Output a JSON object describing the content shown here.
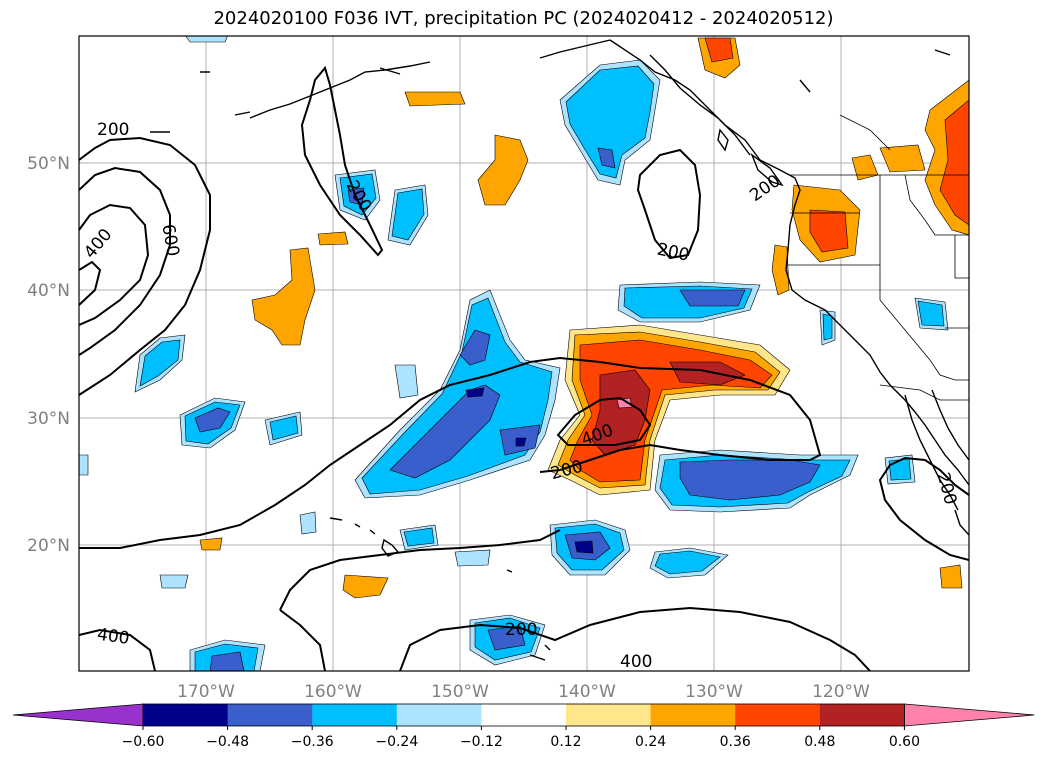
{
  "title": "2024020100 F036 IVT, precipitation PC (2024020412 - 2024020512)",
  "lat_ticks": [
    "50°N",
    "40°N",
    "30°N",
    "20°N"
  ],
  "lon_ticks": [
    "170°W",
    "160°W",
    "150°W",
    "140°W",
    "130°W",
    "120°W"
  ],
  "contour_labels": [
    "200",
    "400",
    "600",
    "200",
    "200",
    "200",
    "400",
    "200",
    "200",
    "400",
    "200",
    "400"
  ],
  "colorbar": {
    "labels": [
      "−0.60",
      "−0.48",
      "−0.36",
      "−0.24",
      "−0.12",
      "0.12",
      "0.24",
      "0.36",
      "0.48",
      "0.60"
    ],
    "colors": [
      "#9932cc",
      "#00008b",
      "#3a5fcd",
      "#00bfff",
      "#aee3ff",
      "#ffffff",
      "#ffe68a",
      "#ffa500",
      "#ff4500",
      "#b22222",
      "#ff82ab"
    ]
  }
}
